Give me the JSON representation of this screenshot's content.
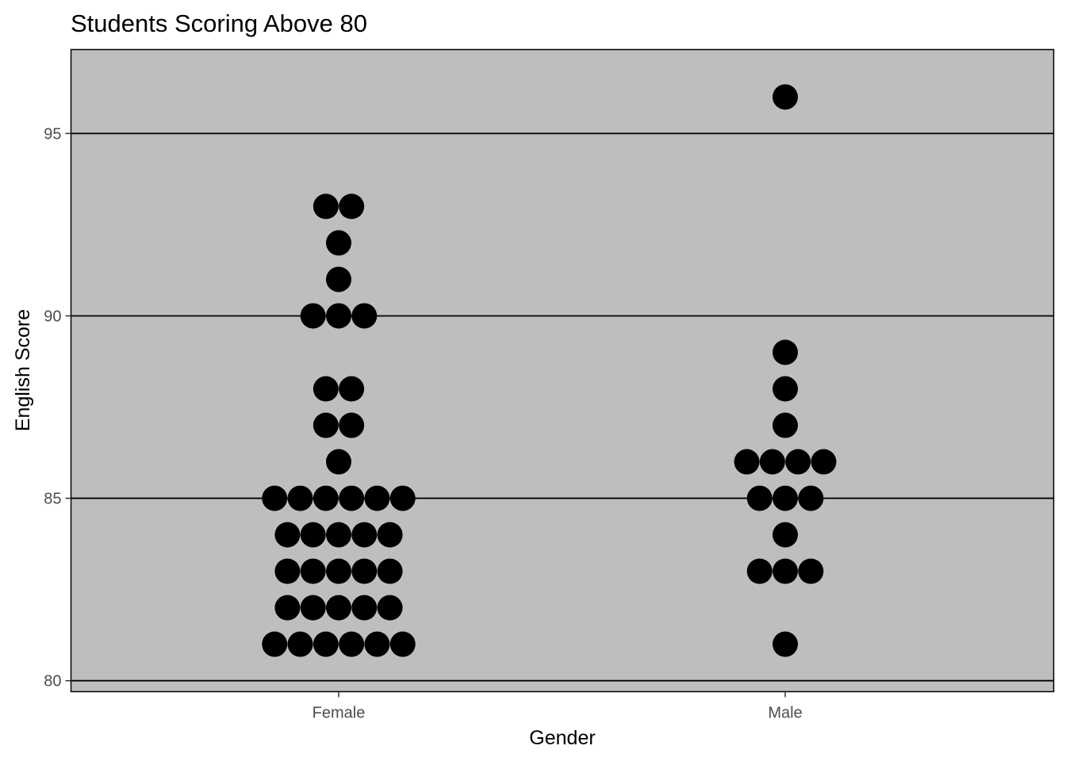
{
  "chart_data": {
    "type": "scatter",
    "title": "Students Scoring Above 80",
    "xlabel": "Gender",
    "ylabel": "English Score",
    "categories": [
      "Female",
      "Male"
    ],
    "y_ticks": [
      "80",
      "85",
      "90",
      "95"
    ],
    "ylim": [
      79.7,
      97.3
    ],
    "grid": "horizontal major",
    "legend": "none",
    "colors": {
      "panel": "#bebebe",
      "points": "#000000",
      "grid": "#000000"
    },
    "series": [
      {
        "category": "Female",
        "y": [
          81,
          81,
          81,
          81,
          81,
          81,
          82,
          82,
          82,
          82,
          82,
          83,
          83,
          83,
          83,
          83,
          84,
          84,
          84,
          84,
          84,
          85,
          85,
          85,
          85,
          85,
          85,
          86,
          87,
          87,
          88,
          88,
          90,
          90,
          90,
          91,
          92,
          93,
          93
        ]
      },
      {
        "category": "Male",
        "y": [
          81,
          83,
          83,
          83,
          84,
          85,
          85,
          85,
          86,
          86,
          86,
          86,
          87,
          88,
          89,
          96
        ]
      }
    ]
  }
}
